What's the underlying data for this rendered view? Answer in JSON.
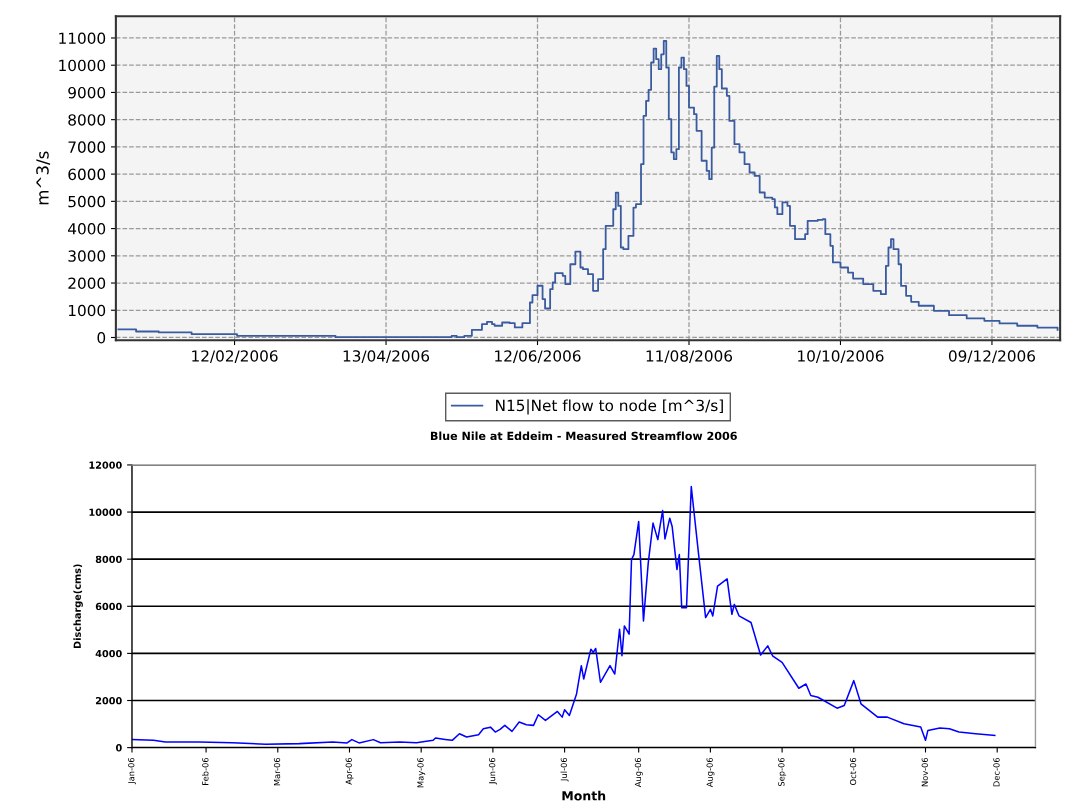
{
  "chart_data": [
    {
      "type": "step",
      "ylabel": "m^3/s",
      "legend": "bottom",
      "grid": true,
      "xlim": [
        "2005-12-27",
        "2007-01-05"
      ],
      "xticks": [
        {
          "value": "2006-02-12",
          "label": "12/02/2006"
        },
        {
          "value": "2006-04-13",
          "label": "13/04/2006"
        },
        {
          "value": "2006-06-12",
          "label": "12/06/2006"
        },
        {
          "value": "2006-08-11",
          "label": "11/08/2006"
        },
        {
          "value": "2006-10-10",
          "label": "10/10/2006"
        },
        {
          "value": "2006-12-09",
          "label": "09/12/2006"
        }
      ],
      "ylim": [
        -100,
        11800
      ],
      "yticks": [
        0,
        1000,
        2000,
        3000,
        4000,
        5000,
        6000,
        7000,
        8000,
        9000,
        10000,
        11000
      ],
      "series": [
        {
          "name": "N15|Net flow to node [m^3/s]",
          "color": "#3a5ba0",
          "x": [
            "2005-12-28",
            "2006-01-04",
            "2006-01-13",
            "2006-01-26",
            "2006-02-13",
            "2006-03-24",
            "2006-05-09",
            "2006-05-11",
            "2006-05-14",
            "2006-05-17",
            "2006-05-21",
            "2006-05-23",
            "2006-05-25",
            "2006-05-26",
            "2006-05-29",
            "2006-06-01",
            "2006-06-03",
            "2006-06-06",
            "2006-06-09",
            "2006-06-10",
            "2006-06-12",
            "2006-06-14",
            "2006-06-15",
            "2006-06-17",
            "2006-06-18",
            "2006-06-19",
            "2006-06-22",
            "2006-06-23",
            "2006-06-25",
            "2006-06-27",
            "2006-06-29",
            "2006-06-30",
            "2006-07-02",
            "2006-07-04",
            "2006-07-06",
            "2006-07-08",
            "2006-07-09",
            "2006-07-12",
            "2006-07-13",
            "2006-07-14",
            "2006-07-15",
            "2006-07-16",
            "2006-07-18",
            "2006-07-20",
            "2006-07-21",
            "2006-07-23",
            "2006-07-24",
            "2006-07-25",
            "2006-07-26",
            "2006-07-27",
            "2006-07-28",
            "2006-07-29",
            "2006-07-30",
            "2006-07-31",
            "2006-08-01",
            "2006-08-02",
            "2006-08-03",
            "2006-08-04",
            "2006-08-05",
            "2006-08-06",
            "2006-08-07",
            "2006-08-08",
            "2006-08-09",
            "2006-08-10",
            "2006-08-11",
            "2006-08-13",
            "2006-08-14",
            "2006-08-16",
            "2006-08-18",
            "2006-08-19",
            "2006-08-20",
            "2006-08-21",
            "2006-08-22",
            "2006-08-23",
            "2006-08-24",
            "2006-08-26",
            "2006-08-27",
            "2006-08-29",
            "2006-08-31",
            "2006-09-02",
            "2006-09-04",
            "2006-09-06",
            "2006-09-08",
            "2006-09-10",
            "2006-09-13",
            "2006-09-14",
            "2006-09-15",
            "2006-09-17",
            "2006-09-19",
            "2006-09-20",
            "2006-09-22",
            "2006-09-24",
            "2006-09-26",
            "2006-09-27",
            "2006-10-01",
            "2006-10-03",
            "2006-10-04",
            "2006-10-06",
            "2006-10-07",
            "2006-10-10",
            "2006-10-13",
            "2006-10-15",
            "2006-10-19",
            "2006-10-23",
            "2006-10-26",
            "2006-10-28",
            "2006-10-29",
            "2006-10-30",
            "2006-10-31",
            "2006-11-02",
            "2006-11-03",
            "2006-11-05",
            "2006-11-07",
            "2006-11-10",
            "2006-11-16",
            "2006-11-22",
            "2006-11-29",
            "2006-12-06",
            "2006-12-12",
            "2006-12-19",
            "2006-12-27",
            "2007-01-04"
          ],
          "values": [
            300,
            220,
            185,
            120,
            60,
            10,
            60,
            10,
            60,
            280,
            490,
            575,
            490,
            430,
            550,
            525,
            370,
            525,
            1285,
            1555,
            1900,
            1410,
            1065,
            1775,
            2020,
            2360,
            2265,
            1960,
            2690,
            3150,
            2570,
            2510,
            2325,
            1715,
            2140,
            3245,
            4100,
            4710,
            5320,
            4830,
            3305,
            3245,
            3730,
            4770,
            4895,
            6365,
            8140,
            8690,
            9095,
            10100,
            10610,
            10220,
            9855,
            10400,
            10890,
            9915,
            8020,
            6795,
            6550,
            6915,
            9915,
            10280,
            9855,
            9240,
            8445,
            8200,
            7590,
            6490,
            6120,
            5815,
            6975,
            9215,
            10340,
            9855,
            9145,
            8875,
            7955,
            7100,
            6795,
            6365,
            6060,
            5935,
            5325,
            5140,
            5080,
            4775,
            4530,
            4960,
            4830,
            4100,
            3610,
            3610,
            3795,
            4285,
            4320,
            4345,
            3795,
            3365,
            2755,
            2570,
            2385,
            2165,
            1960,
            1715,
            1590,
            2630,
            3305,
            3610,
            3245,
            2690,
            1895,
            1530,
            1310,
            1165,
            980,
            820,
            700,
            610,
            515,
            430,
            365,
            280
          ]
        }
      ]
    },
    {
      "type": "line",
      "title": "Blue Nile at Eddeim - Measured Streamflow 2006",
      "xlabel": "Month",
      "ylabel": "Discharge(cms)",
      "grid": "y",
      "xlim": [
        "2006-01-01",
        "2007-01-14"
      ],
      "xticks": [
        {
          "value": "2006-01-01",
          "label": "Jan-06"
        },
        {
          "value": "2006-02-01",
          "label": "Feb-06"
        },
        {
          "value": "2006-03-03",
          "label": "Mar-06"
        },
        {
          "value": "2006-04-02",
          "label": "Apr-06"
        },
        {
          "value": "2006-05-02",
          "label": "May-06"
        },
        {
          "value": "2006-06-01",
          "label": "Jun-06"
        },
        {
          "value": "2006-07-01",
          "label": "Jul-06"
        },
        {
          "value": "2006-08-01",
          "label": "Aug-06"
        },
        {
          "value": "2006-08-31",
          "label": "Aug-06"
        },
        {
          "value": "2006-09-30",
          "label": "Sep-06"
        },
        {
          "value": "2006-10-30",
          "label": "Oct-06"
        },
        {
          "value": "2006-11-29",
          "label": "Nov-06"
        },
        {
          "value": "2006-12-29",
          "label": "Dec-06"
        }
      ],
      "ylim": [
        0,
        12000
      ],
      "yticks": [
        0,
        2000,
        4000,
        6000,
        8000,
        10000,
        12000
      ],
      "series": [
        {
          "color": "#0000ff",
          "x": [
            "2006-01-01",
            "2006-01-10",
            "2006-01-15",
            "2006-01-29",
            "2006-02-12",
            "2006-02-26",
            "2006-03-12",
            "2006-03-26",
            "2006-04-01",
            "2006-04-03",
            "2006-04-06",
            "2006-04-12",
            "2006-04-15",
            "2006-04-23",
            "2006-04-30",
            "2006-05-07",
            "2006-05-08",
            "2006-05-12",
            "2006-05-15",
            "2006-05-18",
            "2006-05-21",
            "2006-05-26",
            "2006-05-28",
            "2006-05-31",
            "2006-06-02",
            "2006-06-04",
            "2006-06-06",
            "2006-06-09",
            "2006-06-12",
            "2006-06-15",
            "2006-06-18",
            "2006-06-20",
            "2006-06-23",
            "2006-06-28",
            "2006-06-30",
            "2006-07-01",
            "2006-07-03",
            "2006-07-06",
            "2006-07-08",
            "2006-07-09",
            "2006-07-12",
            "2006-07-13",
            "2006-07-14",
            "2006-07-16",
            "2006-07-20",
            "2006-07-22",
            "2006-07-24",
            "2006-07-25",
            "2006-07-26",
            "2006-07-28",
            "2006-07-29",
            "2006-07-30",
            "2006-08-01",
            "2006-08-03",
            "2006-08-05",
            "2006-08-07",
            "2006-08-09",
            "2006-08-11",
            "2006-08-12",
            "2006-08-14",
            "2006-08-15",
            "2006-08-17",
            "2006-08-18",
            "2006-08-19",
            "2006-08-21",
            "2006-08-23",
            "2006-08-26",
            "2006-08-29",
            "2006-08-31",
            "2006-09-01",
            "2006-09-03",
            "2006-09-07",
            "2006-09-09",
            "2006-09-10",
            "2006-09-12",
            "2006-09-17",
            "2006-09-21",
            "2006-09-24",
            "2006-09-26",
            "2006-09-30",
            "2006-10-07",
            "2006-10-10",
            "2006-10-12",
            "2006-10-15",
            "2006-10-23",
            "2006-10-26",
            "2006-10-30",
            "2006-11-02",
            "2006-11-09",
            "2006-11-13",
            "2006-11-20",
            "2006-11-27",
            "2006-11-29",
            "2006-11-30",
            "2006-12-05",
            "2006-12-09",
            "2006-12-13",
            "2006-12-20",
            "2006-12-28"
          ],
          "values": [
            340,
            310,
            240,
            240,
            210,
            140,
            170,
            240,
            200,
            340,
            200,
            340,
            210,
            240,
            210,
            310,
            410,
            350,
            310,
            590,
            450,
            550,
            800,
            870,
            660,
            775,
            945,
            690,
            1085,
            970,
            945,
            1395,
            1155,
            1535,
            1295,
            1605,
            1365,
            2280,
            3480,
            2915,
            4180,
            4040,
            4210,
            2775,
            3480,
            3125,
            5025,
            3900,
            5165,
            4815,
            7985,
            8195,
            9600,
            5380,
            7845,
            9530,
            8830,
            10065,
            8860,
            9740,
            9390,
            7560,
            8195,
            5940,
            5940,
            11080,
            8265,
            5520,
            5870,
            5590,
            6855,
            7165,
            5660,
            6080,
            5590,
            5310,
            3930,
            4320,
            3900,
            3620,
            2520,
            2700,
            2210,
            2140,
            1675,
            1790,
            2845,
            1860,
            1295,
            1295,
            1015,
            875,
            310,
            730,
            830,
            800,
            660,
            590,
            520
          ]
        }
      ]
    }
  ]
}
